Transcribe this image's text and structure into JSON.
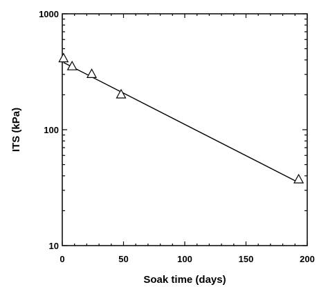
{
  "chart_data": {
    "type": "scatter",
    "title": "",
    "xlabel": "Soak time (days)",
    "ylabel": "ITS (kPa)",
    "xlim": [
      0,
      200
    ],
    "ylim": [
      10,
      1000
    ],
    "y_scale": "log",
    "grid": false,
    "x_ticks": [
      {
        "value": 0,
        "label": "0"
      },
      {
        "value": 50,
        "label": "50"
      },
      {
        "value": 100,
        "label": "100"
      },
      {
        "value": 150,
        "label": "150"
      },
      {
        "value": 200,
        "label": "200"
      }
    ],
    "y_ticks": [
      {
        "value": 10,
        "label": "10"
      },
      {
        "value": 100,
        "label": "100"
      },
      {
        "value": 1000,
        "label": "1000"
      }
    ],
    "series": [
      {
        "marker": "open-triangle",
        "color": "#000000",
        "x": [
          1,
          8,
          24,
          48,
          193
        ],
        "y": [
          410,
          350,
          300,
          200,
          37
        ]
      }
    ],
    "trendline": {
      "type": "exponential",
      "x": [
        1,
        193
      ],
      "y": [
        380,
        35
      ]
    }
  }
}
